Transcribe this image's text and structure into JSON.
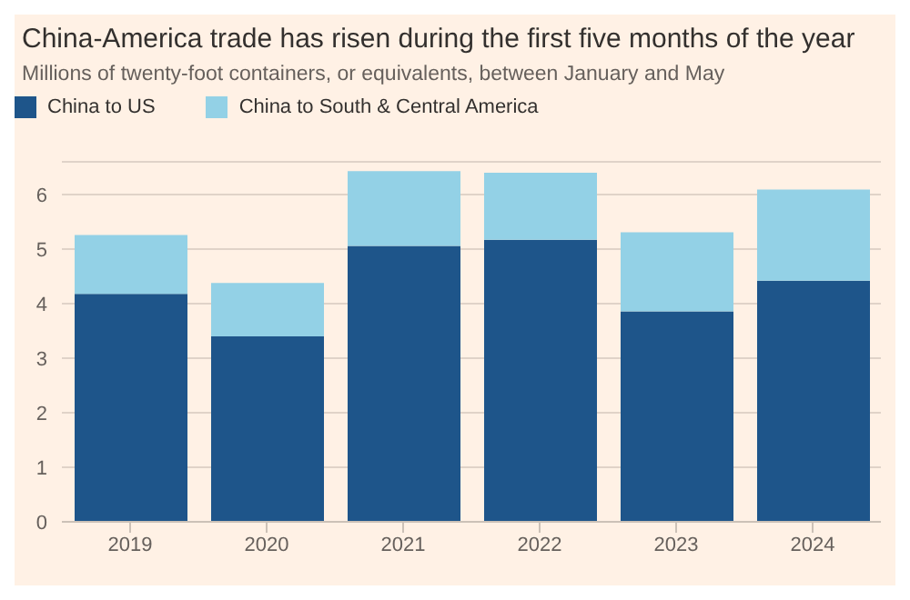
{
  "chart_data": {
    "type": "bar",
    "title": "China-America trade has risen during the first five months of the year",
    "subtitle": "Millions of twenty-foot containers, or equivalents, between January and May",
    "categories": [
      "2019",
      "2020",
      "2021",
      "2022",
      "2023",
      "2024"
    ],
    "series": [
      {
        "name": "China to US",
        "color": "#1e558a",
        "values": [
          4.18,
          3.4,
          5.06,
          5.17,
          3.86,
          4.42
        ]
      },
      {
        "name": "China to South & Central America",
        "color": "#93d1e6",
        "values": [
          1.08,
          0.98,
          1.37,
          1.23,
          1.45,
          1.67
        ]
      }
    ],
    "stacked": true,
    "ylim": [
      0,
      6.6
    ],
    "yticks": [
      0,
      1,
      2,
      3,
      4,
      5,
      6
    ],
    "grid": "y",
    "legend": "top left"
  }
}
